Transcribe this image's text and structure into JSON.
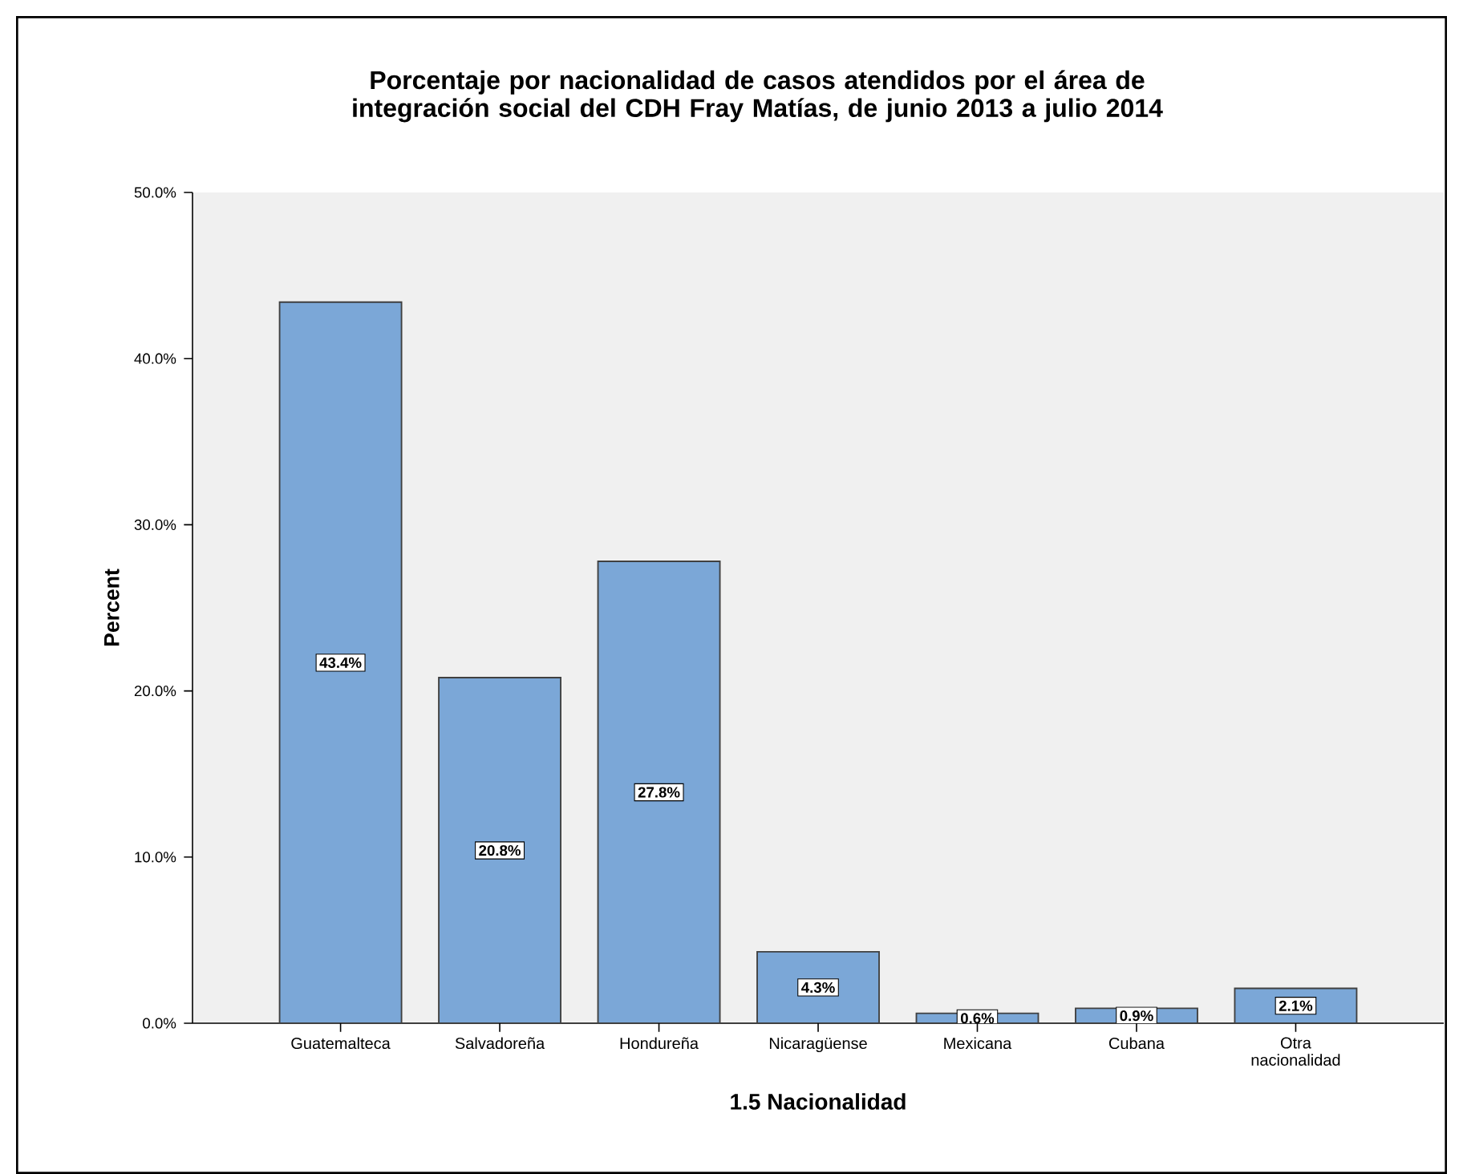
{
  "chart_data": {
    "type": "bar",
    "title": "Porcentaje por nacionalidad de casos atendidos por el área de integración social del CDH Fray Matías, de junio 2013 a julio 2014",
    "xlabel": "1.5 Nacionalidad",
    "ylabel": "Percent",
    "categories": [
      "Guatemalteca",
      "Salvadoreña",
      "Hondureña",
      "Nicaragüense",
      "Mexicana",
      "Cubana",
      "Otra nacionalidad"
    ],
    "values": [
      43.4,
      20.8,
      27.8,
      4.3,
      0.6,
      0.9,
      2.1
    ],
    "value_labels": [
      "43.4%",
      "20.8%",
      "27.8%",
      "4.3%",
      "0.6%",
      "0.9%",
      "2.1%"
    ],
    "color": "#7ba7d7",
    "ylim": [
      0,
      50
    ],
    "yticks": [
      {
        "value": 0,
        "label": "0.0%"
      },
      {
        "value": 10,
        "label": "10.0%"
      },
      {
        "value": 20,
        "label": "20.0%"
      },
      {
        "value": 30,
        "label": "30.0%"
      },
      {
        "value": 40,
        "label": "40.0%"
      },
      {
        "value": 50,
        "label": "50.0%"
      }
    ],
    "grid": false
  }
}
